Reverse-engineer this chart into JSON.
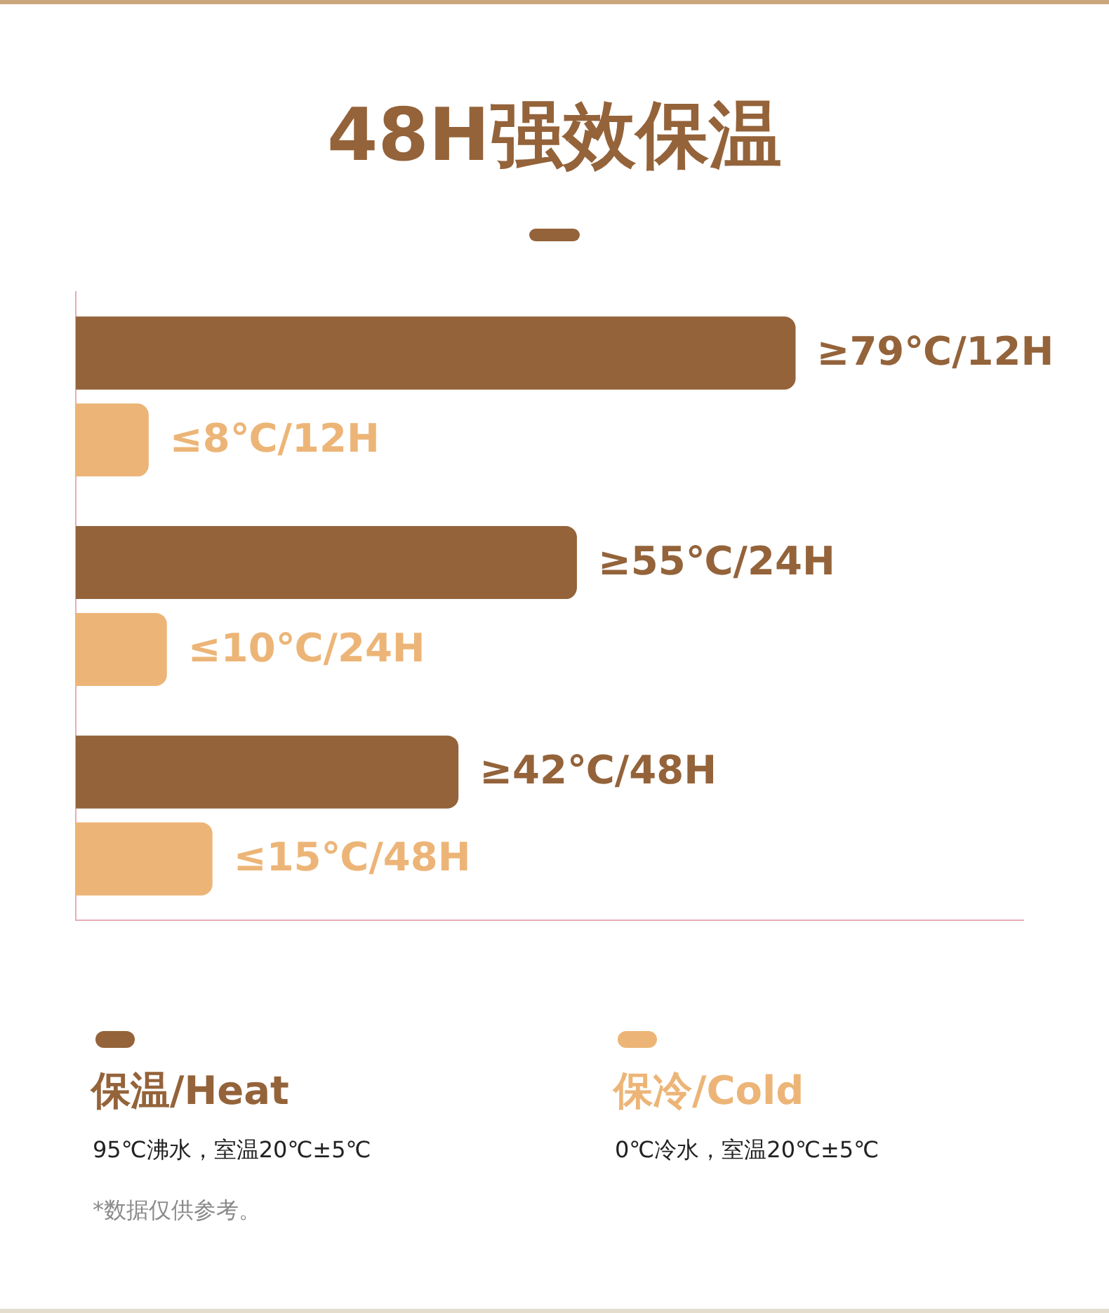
{
  "chart_data": {
    "type": "bar",
    "orientation": "horizontal",
    "title": "48H强效保温",
    "categories": [
      null,
      null,
      null
    ],
    "series": [
      {
        "name": "保温/Heat",
        "color": "#94633a",
        "values": [
          79,
          55,
          42
        ],
        "value_labels": [
          "≥79℃/12H",
          "≥55℃/24H",
          "≥42℃/48H"
        ]
      },
      {
        "name": "保冷/Cold",
        "color": "#ecb577",
        "values": [
          8,
          10,
          15
        ],
        "value_labels": [
          "≤8℃/12H",
          "≤10℃/24H",
          "≤15℃/48H"
        ]
      }
    ],
    "xlim": [
      0,
      104
    ],
    "tick_labels": false,
    "legend": "bottom",
    "annotations": [
      "95℃沸水，室温20℃±5℃",
      "0℃冷水，室温20℃±5℃",
      "*数据仅供参考。"
    ]
  }
}
